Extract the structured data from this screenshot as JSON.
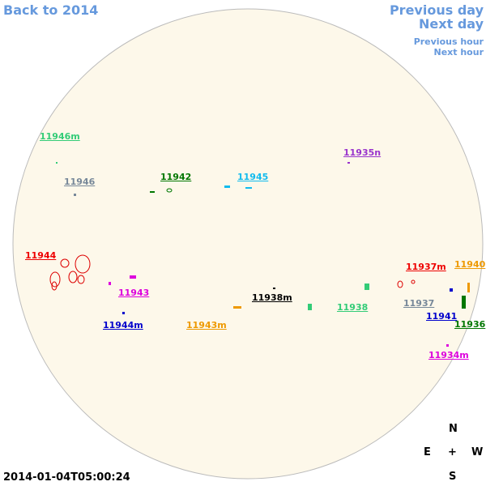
{
  "nav": {
    "back_year": "Back to 2014",
    "previous_day": "Previous day",
    "next_day": "Next day",
    "previous_hour": "Previous hour",
    "next_hour": "Next hour"
  },
  "regions": [
    {
      "label": "11946m",
      "color": "#33cc77"
    },
    {
      "label": "11946",
      "color": "#778899"
    },
    {
      "label": "11942",
      "color": "#007700"
    },
    {
      "label": "11945",
      "color": "#11bbee"
    },
    {
      "label": "11935n",
      "color": "#9933cc"
    },
    {
      "label": "11944",
      "color": "#ee0000"
    },
    {
      "label": "11943",
      "color": "#dd00dd"
    },
    {
      "label": "11944m",
      "color": "#0000cc"
    },
    {
      "label": "11943m",
      "color": "#ee9900"
    },
    {
      "label": "11938m",
      "color": "#000000"
    },
    {
      "label": "11938",
      "color": "#33cc77"
    },
    {
      "label": "11937m",
      "color": "#ee0000"
    },
    {
      "label": "11940",
      "color": "#ee9900"
    },
    {
      "label": "11937",
      "color": "#778899"
    },
    {
      "label": "11941",
      "color": "#0000cc"
    },
    {
      "label": "11936",
      "color": "#007700"
    },
    {
      "label": "11934m",
      "color": "#dd00dd"
    }
  ],
  "compass": {
    "north": "N",
    "east": "E",
    "center": "+",
    "west": "W",
    "south": "S"
  },
  "timestamp": "2014-01-04T05:00:24"
}
